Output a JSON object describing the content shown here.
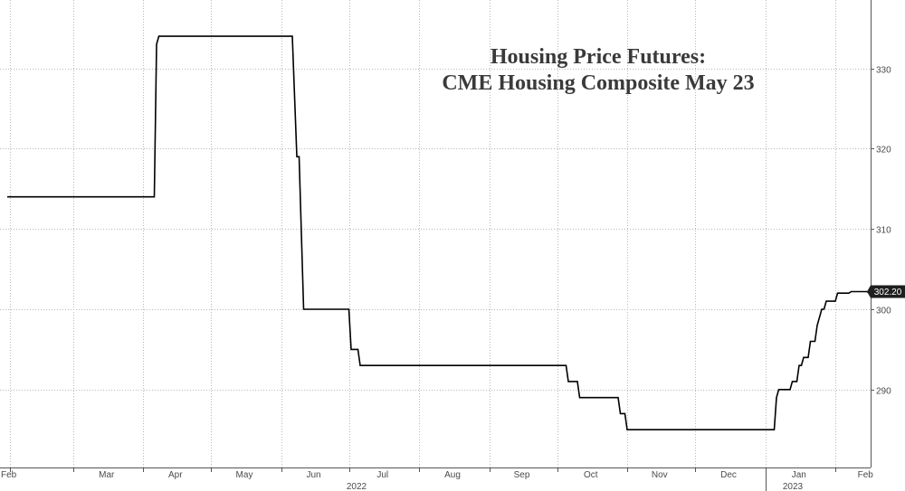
{
  "chart_data": {
    "type": "line",
    "title": [
      "Housing Price Futures:",
      "CME Housing Composite May 23"
    ],
    "x_tick_labels": [
      "Feb",
      "Mar",
      "Apr",
      "May",
      "Jun",
      "Jul",
      "Aug",
      "Sep",
      "Oct",
      "Nov",
      "Dec",
      "Jan",
      "Feb"
    ],
    "x_year_labels": [
      "2022",
      "2023"
    ],
    "y_tick_labels": [
      "290",
      "300",
      "310",
      "320",
      "330"
    ],
    "ylim": [
      280,
      337
    ],
    "y_axis_side": "right",
    "grid": true,
    "last_value_label": "302.20",
    "colors": {
      "line": "#000000",
      "grid": "#b8b8b8",
      "axis": "#555555",
      "last_value_bg": "#1f1f1f"
    },
    "series": [
      {
        "x": [
          "2022-01-31",
          "2022-04-06",
          "2022-04-07",
          "2022-04-08",
          "2022-06-06",
          "2022-06-08",
          "2022-06-09",
          "2022-06-11",
          "2022-06-13",
          "2022-06-14",
          "2022-07-01",
          "2022-07-02",
          "2022-07-05",
          "2022-07-06",
          "2022-07-07",
          "2022-07-08",
          "2022-10-05",
          "2022-10-06",
          "2022-10-10",
          "2022-10-11",
          "2022-10-13",
          "2022-10-14",
          "2022-10-28",
          "2022-10-29",
          "2022-10-31",
          "2022-11-01",
          "2022-11-02",
          "2022-11-03",
          "2023-01-05",
          "2023-01-06",
          "2023-01-07",
          "2023-01-08",
          "2023-01-12",
          "2023-01-13",
          "2023-01-15",
          "2023-01-16",
          "2023-01-17",
          "2023-01-18",
          "2023-01-20",
          "2023-01-21",
          "2023-01-23",
          "2023-01-24",
          "2023-01-26",
          "2023-01-27",
          "2023-01-28",
          "2023-01-29",
          "2023-02-01",
          "2023-02-02",
          "2023-02-07",
          "2023-02-08",
          "2023-02-15",
          "2023-02-16",
          "2023-02-19",
          "2023-02-20",
          "2023-02-22",
          "2023-02-23",
          "2023-02-26"
        ],
        "y": [
          314,
          314,
          333,
          334,
          334,
          319,
          319,
          300,
          300,
          300,
          300,
          295,
          295,
          293,
          293,
          293,
          293,
          291,
          291,
          289,
          289,
          289,
          289,
          287,
          287,
          285,
          285,
          285,
          285,
          289,
          290,
          290,
          290,
          291,
          291,
          293,
          293,
          294,
          294,
          296,
          296,
          298,
          300,
          300,
          301,
          301,
          301,
          302,
          302,
          302.2,
          302.2,
          302,
          302,
          302.2,
          302.2,
          302.2,
          302.2
        ]
      }
    ]
  }
}
